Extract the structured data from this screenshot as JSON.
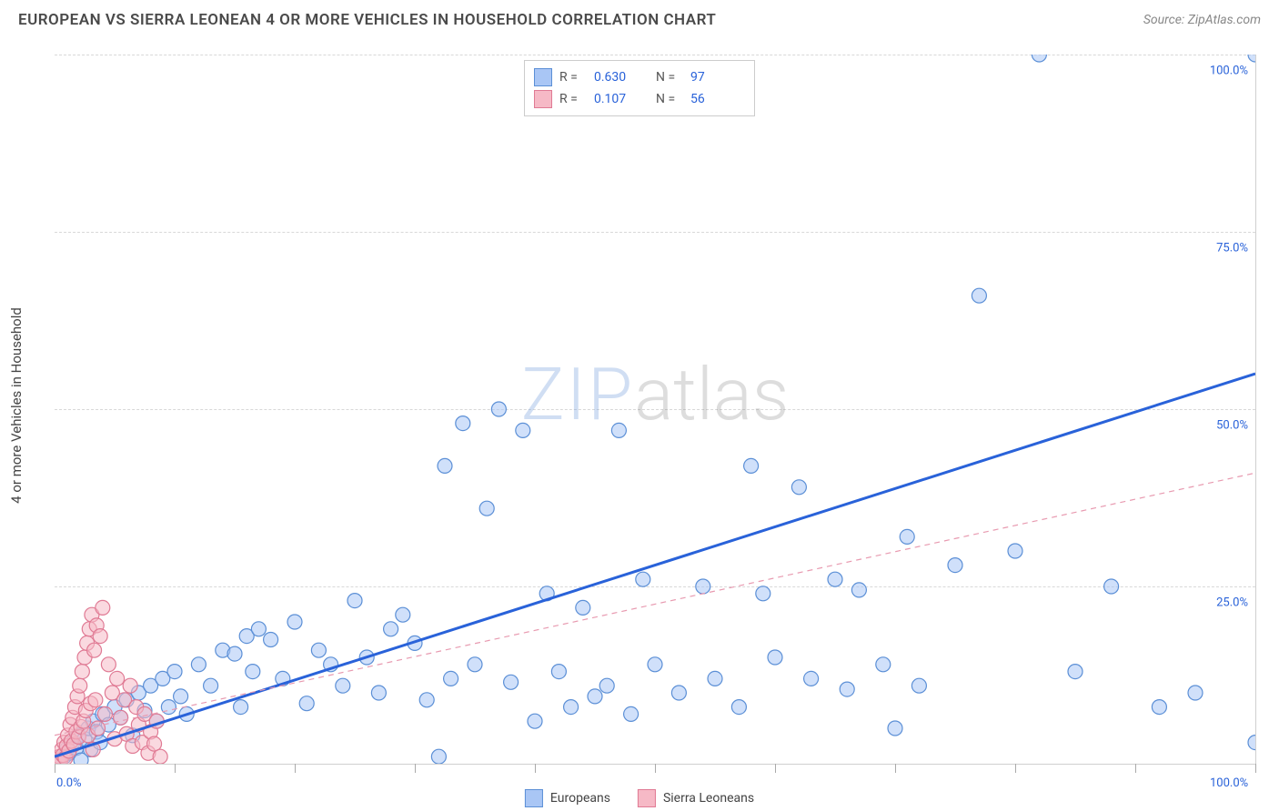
{
  "header": {
    "title": "EUROPEAN VS SIERRA LEONEAN 4 OR MORE VEHICLES IN HOUSEHOLD CORRELATION CHART",
    "source_prefix": "Source: ",
    "source_name": "ZipAtlas.com"
  },
  "watermark": {
    "zip": "ZIP",
    "atlas": "atlas"
  },
  "chart": {
    "type": "scatter",
    "xlim": [
      0,
      100
    ],
    "ylim": [
      0,
      100
    ],
    "x_ticks": [
      0,
      10,
      20,
      30,
      40,
      50,
      60,
      70,
      80,
      90,
      100
    ],
    "y_gridlines": [
      25,
      50,
      75,
      100
    ],
    "y_tick_labels": [
      "25.0%",
      "50.0%",
      "75.0%",
      "100.0%"
    ],
    "x_min_label": "0.0%",
    "x_max_label": "100.0%",
    "ylabel": "4 or more Vehicles in Household",
    "background_color": "#ffffff",
    "grid_color": "#d8d8d8",
    "marker_radius": 8,
    "marker_stroke_width": 1.2,
    "series": [
      {
        "name": "Europeans",
        "fill": "#a9c6f5",
        "stroke": "#5b8fd6",
        "fill_opacity": 0.55,
        "R": "0.630",
        "N": "97",
        "trend": {
          "x1": 0,
          "y1": 1,
          "x2": 100,
          "y2": 55,
          "color": "#2962d9",
          "width": 3,
          "dash": ""
        },
        "points": [
          [
            0.5,
            0.5
          ],
          [
            0.8,
            1.0
          ],
          [
            1.0,
            2.0
          ],
          [
            1.2,
            1.5
          ],
          [
            1.5,
            3.0
          ],
          [
            1.8,
            2.2
          ],
          [
            2.0,
            4.0
          ],
          [
            2.2,
            0.5
          ],
          [
            2.5,
            3.5
          ],
          [
            2.8,
            5.0
          ],
          [
            3.0,
            2.0
          ],
          [
            3.2,
            6.0
          ],
          [
            3.5,
            4.5
          ],
          [
            3.8,
            3.0
          ],
          [
            4.0,
            7.0
          ],
          [
            4.5,
            5.5
          ],
          [
            5.0,
            8.0
          ],
          [
            5.5,
            6.5
          ],
          [
            6.0,
            9.0
          ],
          [
            6.5,
            4.0
          ],
          [
            7.0,
            10.0
          ],
          [
            7.5,
            7.5
          ],
          [
            8.0,
            11.0
          ],
          [
            8.5,
            6.0
          ],
          [
            9.0,
            12.0
          ],
          [
            9.5,
            8.0
          ],
          [
            10.0,
            13.0
          ],
          [
            10.5,
            9.5
          ],
          [
            11.0,
            7.0
          ],
          [
            12.0,
            14.0
          ],
          [
            13.0,
            11.0
          ],
          [
            14.0,
            16.0
          ],
          [
            15.0,
            15.5
          ],
          [
            15.5,
            8.0
          ],
          [
            16.0,
            18.0
          ],
          [
            16.5,
            13.0
          ],
          [
            17.0,
            19.0
          ],
          [
            18.0,
            17.5
          ],
          [
            19.0,
            12.0
          ],
          [
            20.0,
            20.0
          ],
          [
            21.0,
            8.5
          ],
          [
            22.0,
            16.0
          ],
          [
            23.0,
            14.0
          ],
          [
            24.0,
            11.0
          ],
          [
            25.0,
            23.0
          ],
          [
            26.0,
            15.0
          ],
          [
            27.0,
            10.0
          ],
          [
            28.0,
            19.0
          ],
          [
            29.0,
            21.0
          ],
          [
            30.0,
            17.0
          ],
          [
            31.0,
            9.0
          ],
          [
            32.0,
            1.0
          ],
          [
            32.5,
            42.0
          ],
          [
            33.0,
            12.0
          ],
          [
            34.0,
            48.0
          ],
          [
            35.0,
            14.0
          ],
          [
            36.0,
            36.0
          ],
          [
            37.0,
            50.0
          ],
          [
            38.0,
            11.5
          ],
          [
            39.0,
            47.0
          ],
          [
            40.0,
            6.0
          ],
          [
            41.0,
            24.0
          ],
          [
            42.0,
            13.0
          ],
          [
            43.0,
            8.0
          ],
          [
            44.0,
            22.0
          ],
          [
            45.0,
            9.5
          ],
          [
            46.0,
            11.0
          ],
          [
            47.0,
            47.0
          ],
          [
            48.0,
            7.0
          ],
          [
            49.0,
            26.0
          ],
          [
            50.0,
            14.0
          ],
          [
            52.0,
            10.0
          ],
          [
            54.0,
            25.0
          ],
          [
            55.0,
            12.0
          ],
          [
            57.0,
            8.0
          ],
          [
            58.0,
            42.0
          ],
          [
            59.0,
            24.0
          ],
          [
            60.0,
            15.0
          ],
          [
            62.0,
            39.0
          ],
          [
            63.0,
            12.0
          ],
          [
            65.0,
            26.0
          ],
          [
            66.0,
            10.5
          ],
          [
            67.0,
            24.5
          ],
          [
            69.0,
            14.0
          ],
          [
            70.0,
            5.0
          ],
          [
            71.0,
            32.0
          ],
          [
            72.0,
            11.0
          ],
          [
            75.0,
            28.0
          ],
          [
            77.0,
            66.0
          ],
          [
            80.0,
            30.0
          ],
          [
            82.0,
            100.0
          ],
          [
            85.0,
            13.0
          ],
          [
            88.0,
            25.0
          ],
          [
            92.0,
            8.0
          ],
          [
            95.0,
            10.0
          ],
          [
            100.0,
            100.0
          ],
          [
            100.0,
            3.0
          ]
        ]
      },
      {
        "name": "Sierra Leoneans",
        "fill": "#f6b9c6",
        "stroke": "#e07a94",
        "fill_opacity": 0.55,
        "R": "0.107",
        "N": "56",
        "trend": {
          "x1": 0,
          "y1": 4,
          "x2": 100,
          "y2": 41,
          "color": "#e89ab0",
          "width": 1.2,
          "dash": "6 5"
        },
        "points": [
          [
            0.3,
            0.2
          ],
          [
            0.4,
            1.0
          ],
          [
            0.5,
            0.5
          ],
          [
            0.6,
            2.0
          ],
          [
            0.7,
            1.2
          ],
          [
            0.8,
            3.0
          ],
          [
            0.9,
            0.8
          ],
          [
            1.0,
            2.5
          ],
          [
            1.1,
            4.0
          ],
          [
            1.2,
            1.8
          ],
          [
            1.3,
            5.5
          ],
          [
            1.4,
            3.2
          ],
          [
            1.5,
            6.5
          ],
          [
            1.6,
            2.7
          ],
          [
            1.7,
            8.0
          ],
          [
            1.8,
            4.5
          ],
          [
            1.9,
            9.5
          ],
          [
            2.0,
            3.8
          ],
          [
            2.1,
            11.0
          ],
          [
            2.2,
            5.2
          ],
          [
            2.3,
            13.0
          ],
          [
            2.4,
            6.0
          ],
          [
            2.5,
            15.0
          ],
          [
            2.6,
            7.5
          ],
          [
            2.7,
            17.0
          ],
          [
            2.8,
            4.0
          ],
          [
            2.9,
            19.0
          ],
          [
            3.0,
            8.5
          ],
          [
            3.1,
            21.0
          ],
          [
            3.2,
            2.0
          ],
          [
            3.3,
            16.0
          ],
          [
            3.4,
            9.0
          ],
          [
            3.5,
            19.5
          ],
          [
            3.6,
            5.0
          ],
          [
            3.8,
            18.0
          ],
          [
            4.0,
            22.0
          ],
          [
            4.2,
            7.0
          ],
          [
            4.5,
            14.0
          ],
          [
            4.8,
            10.0
          ],
          [
            5.0,
            3.5
          ],
          [
            5.2,
            12.0
          ],
          [
            5.5,
            6.5
          ],
          [
            5.8,
            9.0
          ],
          [
            6.0,
            4.2
          ],
          [
            6.3,
            11.0
          ],
          [
            6.5,
            2.5
          ],
          [
            6.8,
            8.0
          ],
          [
            7.0,
            5.5
          ],
          [
            7.3,
            3.0
          ],
          [
            7.5,
            7.0
          ],
          [
            7.8,
            1.5
          ],
          [
            8.0,
            4.5
          ],
          [
            8.3,
            2.8
          ],
          [
            8.5,
            6.0
          ],
          [
            8.8,
            1.0
          ],
          [
            5.5,
            -1.5
          ]
        ]
      }
    ]
  },
  "legend_bottom": [
    {
      "label": "Europeans",
      "fill": "#a9c6f5",
      "stroke": "#5b8fd6"
    },
    {
      "label": "Sierra Leoneans",
      "fill": "#f6b9c6",
      "stroke": "#e07a94"
    }
  ]
}
